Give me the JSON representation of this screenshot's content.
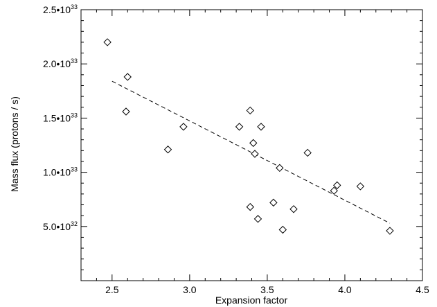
{
  "chart_data": {
    "type": "scatter",
    "xlabel": "Expansion factor",
    "ylabel": "Mass flux (protons / s)",
    "xlim": [
      2.3,
      4.5
    ],
    "ylim": [
      0,
      2.5e+33
    ],
    "grid": false,
    "legend": "none",
    "x_ticks": [
      {
        "value": 2.5,
        "label": "2.5"
      },
      {
        "value": 3.0,
        "label": "3.0"
      },
      {
        "value": 3.5,
        "label": "3.5"
      },
      {
        "value": 4.0,
        "label": "4.0"
      },
      {
        "value": 4.5,
        "label": "4.5"
      }
    ],
    "y_ticks": [
      {
        "value": 5e+32,
        "mantissa": "5.0",
        "exponent": "32"
      },
      {
        "value": 1e+33,
        "mantissa": "1.0",
        "exponent": "33"
      },
      {
        "value": 1.5e+33,
        "mantissa": "1.5",
        "exponent": "33"
      },
      {
        "value": 2e+33,
        "mantissa": "2.0",
        "exponent": "33"
      },
      {
        "value": 2.5e+33,
        "mantissa": "2.5",
        "exponent": "33"
      }
    ],
    "series": [
      {
        "marker": "diamond",
        "color": "#000000",
        "points": [
          {
            "x": 2.47,
            "y": 2.2e+33
          },
          {
            "x": 2.6,
            "y": 1.88e+33
          },
          {
            "x": 2.59,
            "y": 1.56e+33
          },
          {
            "x": 2.86,
            "y": 1.21e+33
          },
          {
            "x": 2.96,
            "y": 1.42e+33
          },
          {
            "x": 3.32,
            "y": 1.42e+33
          },
          {
            "x": 3.39,
            "y": 1.57e+33
          },
          {
            "x": 3.41,
            "y": 1.27e+33
          },
          {
            "x": 3.42,
            "y": 1.17e+33
          },
          {
            "x": 3.46,
            "y": 1.42e+33
          },
          {
            "x": 3.39,
            "y": 6.8e+32
          },
          {
            "x": 3.44,
            "y": 5.7e+32
          },
          {
            "x": 3.54,
            "y": 7.2e+32
          },
          {
            "x": 3.58,
            "y": 1.04e+33
          },
          {
            "x": 3.6,
            "y": 4.7e+32
          },
          {
            "x": 3.67,
            "y": 6.6e+32
          },
          {
            "x": 3.76,
            "y": 1.18e+33
          },
          {
            "x": 3.93,
            "y": 8.3e+32
          },
          {
            "x": 3.95,
            "y": 8.8e+32
          },
          {
            "x": 4.1,
            "y": 8.7e+32
          },
          {
            "x": 4.29,
            "y": 4.6e+32
          }
        ]
      }
    ],
    "fit_line": {
      "style": "dashed",
      "color": "#000000",
      "x": [
        2.5,
        4.29
      ],
      "y": [
        1.84e+33,
        5.3e+32
      ]
    }
  }
}
